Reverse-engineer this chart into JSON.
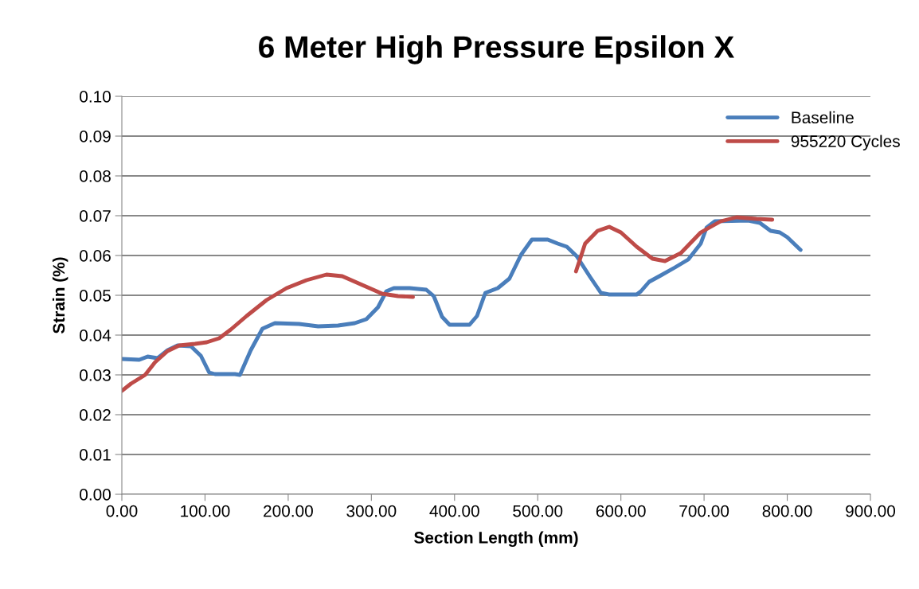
{
  "chart_data": {
    "type": "line",
    "title": "6 Meter High Pressure Epsilon X",
    "xlabel": "Section Length (mm)",
    "ylabel": "Strain (%)",
    "xlim": [
      0,
      900
    ],
    "xticks": [
      {
        "value": 0,
        "label": "0.00"
      },
      {
        "value": 100,
        "label": "100.00"
      },
      {
        "value": 200,
        "label": "200.00"
      },
      {
        "value": 300,
        "label": "300.00"
      },
      {
        "value": 400,
        "label": "400.00"
      },
      {
        "value": 500,
        "label": "500.00"
      },
      {
        "value": 600,
        "label": "600.00"
      },
      {
        "value": 700,
        "label": "700.00"
      },
      {
        "value": 800,
        "label": "800.00"
      },
      {
        "value": 900,
        "label": "900.00"
      }
    ],
    "ylim": [
      0,
      0.1
    ],
    "yticks": [
      {
        "value": 0,
        "label": "0.00"
      },
      {
        "value": 0.01,
        "label": "0.01"
      },
      {
        "value": 0.02,
        "label": "0.02"
      },
      {
        "value": 0.03,
        "label": "0.03"
      },
      {
        "value": 0.04,
        "label": "0.04"
      },
      {
        "value": 0.05,
        "label": "0.05"
      },
      {
        "value": 0.06,
        "label": "0.06"
      },
      {
        "value": 0.07,
        "label": "0.07"
      },
      {
        "value": 0.08,
        "label": "0.08"
      },
      {
        "value": 0.09,
        "label": "0.09"
      },
      {
        "value": 0.1,
        "label": "0.10"
      }
    ],
    "grid": "y",
    "legend": "top right",
    "marker": "none",
    "line_style": "solid",
    "series": [
      {
        "name": "Baseline",
        "color": "#4a7ebb",
        "x": [
          0,
          21,
          31,
          43,
          55,
          67,
          83,
          95,
          105,
          112,
          136,
          142,
          155,
          169,
          184,
          213,
          236,
          260,
          280,
          294,
          308,
          318,
          327,
          346,
          366,
          375,
          385,
          394,
          418,
          427,
          437,
          452,
          466,
          480,
          493,
          512,
          524,
          535,
          547,
          563,
          576,
          586,
          619,
          624,
          634,
          648,
          665,
          681,
          696,
          703,
          713,
          753,
          767,
          780,
          791,
          800,
          816
        ],
        "values": [
          0.034,
          0.0338,
          0.0346,
          0.0342,
          0.0362,
          0.0374,
          0.0372,
          0.0348,
          0.0306,
          0.0302,
          0.0302,
          0.03,
          0.0362,
          0.0416,
          0.043,
          0.0428,
          0.0422,
          0.0424,
          0.043,
          0.044,
          0.047,
          0.051,
          0.0518,
          0.0518,
          0.0514,
          0.0498,
          0.0446,
          0.0426,
          0.0426,
          0.0448,
          0.0506,
          0.0518,
          0.0542,
          0.0602,
          0.064,
          0.064,
          0.063,
          0.0622,
          0.0598,
          0.0546,
          0.0506,
          0.0502,
          0.0502,
          0.051,
          0.0534,
          0.055,
          0.057,
          0.059,
          0.063,
          0.067,
          0.0686,
          0.0688,
          0.0682,
          0.0662,
          0.0658,
          0.0646,
          0.0614
        ]
      },
      {
        "name": "955220 Cycles",
        "color": "#be4b48",
        "x": [
          0,
          11,
          28,
          40,
          55,
          69,
          88,
          102,
          117,
          131,
          150,
          174,
          198,
          222,
          246,
          265,
          289,
          313,
          332,
          350,
          450,
          546,
          557,
          572,
          586,
          600,
          619,
          638,
          653,
          672,
          696,
          720,
          739,
          763,
          782
        ],
        "values": [
          0.026,
          0.0278,
          0.03,
          0.0332,
          0.036,
          0.0374,
          0.0378,
          0.0382,
          0.0392,
          0.0414,
          0.0448,
          0.0488,
          0.0518,
          0.0538,
          0.0552,
          0.0548,
          0.0526,
          0.0504,
          0.0498,
          0.0496,
          null,
          0.056,
          0.063,
          0.0662,
          0.0672,
          0.0658,
          0.0622,
          0.0592,
          0.0586,
          0.0606,
          0.0658,
          0.0686,
          0.0696,
          0.0692,
          0.069
        ]
      }
    ]
  }
}
